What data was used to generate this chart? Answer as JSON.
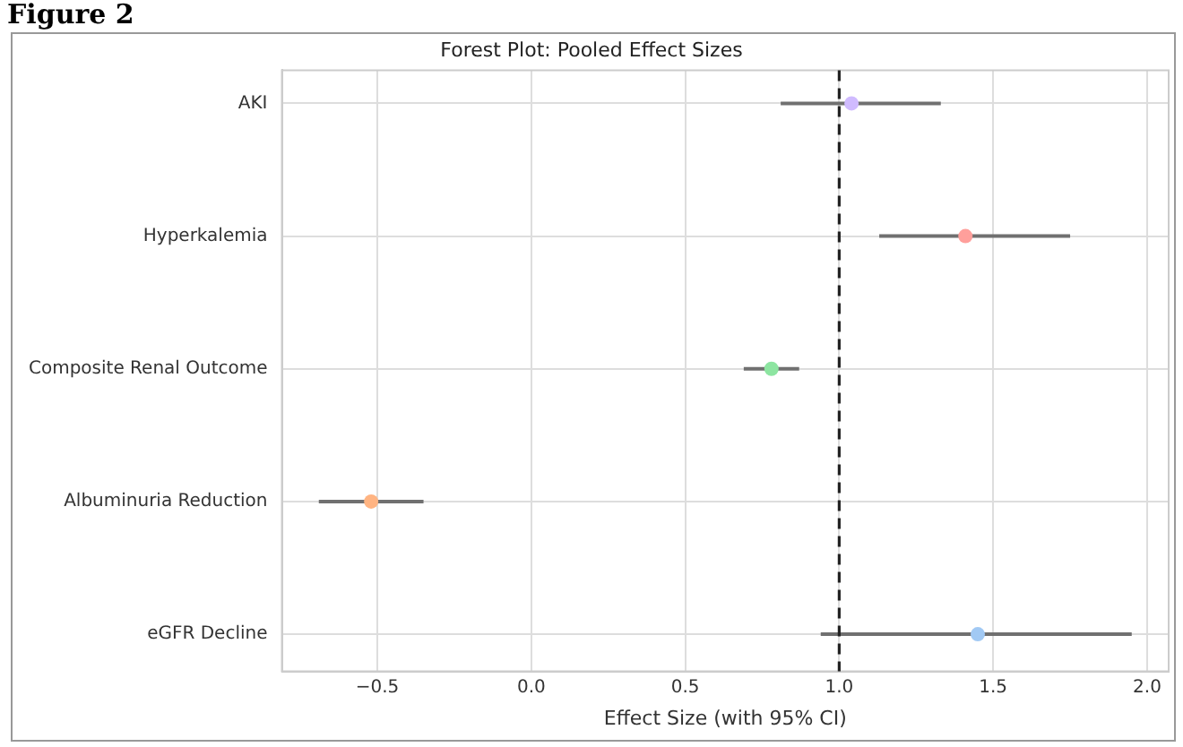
{
  "chart_data": {
    "type": "scatter",
    "orientation": "horizontal",
    "title": "Forest Plot: Pooled Effect Sizes",
    "xlabel": "Effect Size (with 95% CI)",
    "annotations": [
      "Figure 2"
    ],
    "categories": [
      "AKI",
      "Hyperkalemia",
      "Composite Renal Outcome",
      "Albuminuria Reduction",
      "eGFR Decline"
    ],
    "values": [
      1.04,
      1.41,
      0.78,
      -0.52,
      1.45
    ],
    "colors": [
      "#d0bbff",
      "#ff9f9b",
      "#8de5a1",
      "#ffb482",
      "#a1c9f4"
    ],
    "errors": [
      [
        0.81,
        1.33
      ],
      [
        1.13,
        1.75
      ],
      [
        0.69,
        0.87
      ],
      [
        -0.69,
        -0.35
      ],
      [
        0.94,
        1.95
      ]
    ],
    "xlim": [
      -0.81,
      2.07
    ],
    "xticks": [
      {
        "value": -0.5,
        "label": "−0.5"
      },
      {
        "value": 0,
        "label": "0.0"
      },
      {
        "value": 0.5,
        "label": "0.5"
      },
      {
        "value": 1,
        "label": "1.0"
      },
      {
        "value": 1.5,
        "label": "1.5"
      },
      {
        "value": 2,
        "label": "2.0"
      }
    ],
    "ref_lines": [
      {
        "axis": "x",
        "value": 1,
        "color": "#222222",
        "line_style": "dashed"
      }
    ],
    "grid": true,
    "marker": "circle"
  }
}
